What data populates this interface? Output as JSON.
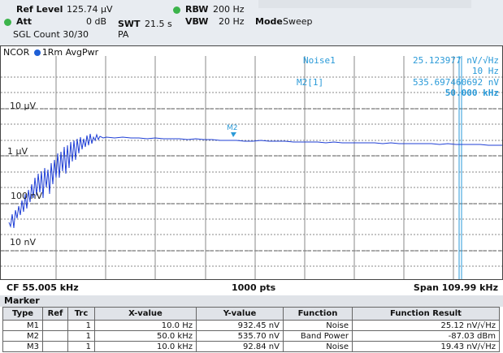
{
  "header": {
    "ref_level_label": "Ref Level",
    "ref_level_value": "125.74 µV",
    "rbw_label": "RBW",
    "rbw_value": "200 Hz",
    "att_label": "Att",
    "att_value": "0 dB",
    "swt_label": "SWT",
    "swt_value": "21.5 s",
    "vbw_label": "VBW",
    "vbw_value": "20 Hz",
    "mode_label": "Mode",
    "mode_value": "Sweep",
    "sgl_count": "SGL Count 30/30",
    "pa": "PA"
  },
  "trace_header": {
    "ncor": "NCOR",
    "trace_label": "1Rm AvgPwr"
  },
  "marker_info": {
    "noise1_label": "Noise1",
    "noise1_value": "25.123977 nV/√Hz",
    "noise1_freq": "10 Hz",
    "m2_label": "M2[1]",
    "m2_value": "535.697460692 nV",
    "m2_freq": "50.000 kHz"
  },
  "y_axis_labels": [
    "10 µV",
    "1 µV",
    "100 nV",
    "10 nV"
  ],
  "trace_marker_label": "M2",
  "footer": {
    "cf": "CF 55.005 kHz",
    "pts": "1000 pts",
    "span": "Span 109.99 kHz"
  },
  "marker_table": {
    "title": "Marker",
    "headers": [
      "Type",
      "Ref",
      "Trc",
      "X-value",
      "Y-value",
      "Function",
      "Function Result"
    ],
    "rows": [
      [
        "M1",
        "",
        "1",
        "10.0 Hz",
        "932.45 nV",
        "Noise",
        "25.12 nV/√Hz"
      ],
      [
        "M2",
        "",
        "1",
        "50.0 kHz",
        "535.70 nV",
        "Band Power",
        "-87.03 dBm"
      ],
      [
        "M3",
        "",
        "1",
        "10.0 kHz",
        "92.84 nV",
        "Noise",
        "19.43 nV/√Hz"
      ]
    ]
  },
  "colors": {
    "trace": "#1f3fd6",
    "marker_text": "#2a9ad8",
    "header_bg": "#e8ecf1",
    "status_dot": "#3cb44b"
  }
}
